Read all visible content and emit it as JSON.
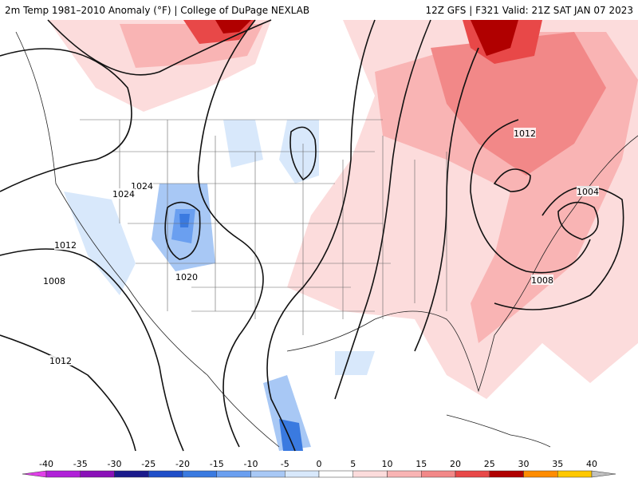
{
  "header": {
    "title": "2m Temp 1981–2010 Anomaly (°F) | College of DuPage NEXLAB",
    "run": "12Z GFS | F321 Valid: 21Z SAT JAN 07 2023"
  },
  "isobar_labels": [
    "1012",
    "1004",
    "1024",
    "1024",
    "1012",
    "1008",
    "1020",
    "1008",
    "1012"
  ],
  "colorbar": {
    "ticks": [
      -40,
      -35,
      -30,
      -25,
      -20,
      -15,
      -10,
      -5,
      0,
      5,
      10,
      15,
      20,
      25,
      30,
      35,
      40
    ],
    "colors": [
      "#e040e8",
      "#b020d8",
      "#8a10b8",
      "#1a1a8c",
      "#1e4ec8",
      "#3a7ae0",
      "#6a9ff0",
      "#a8c8f5",
      "#d8e8fb",
      "#ffffff",
      "#fcdcdc",
      "#f9b4b4",
      "#f28888",
      "#e84848",
      "#b00000",
      "#ff8c00",
      "#ffc800",
      "#c0c0c0"
    ]
  }
}
